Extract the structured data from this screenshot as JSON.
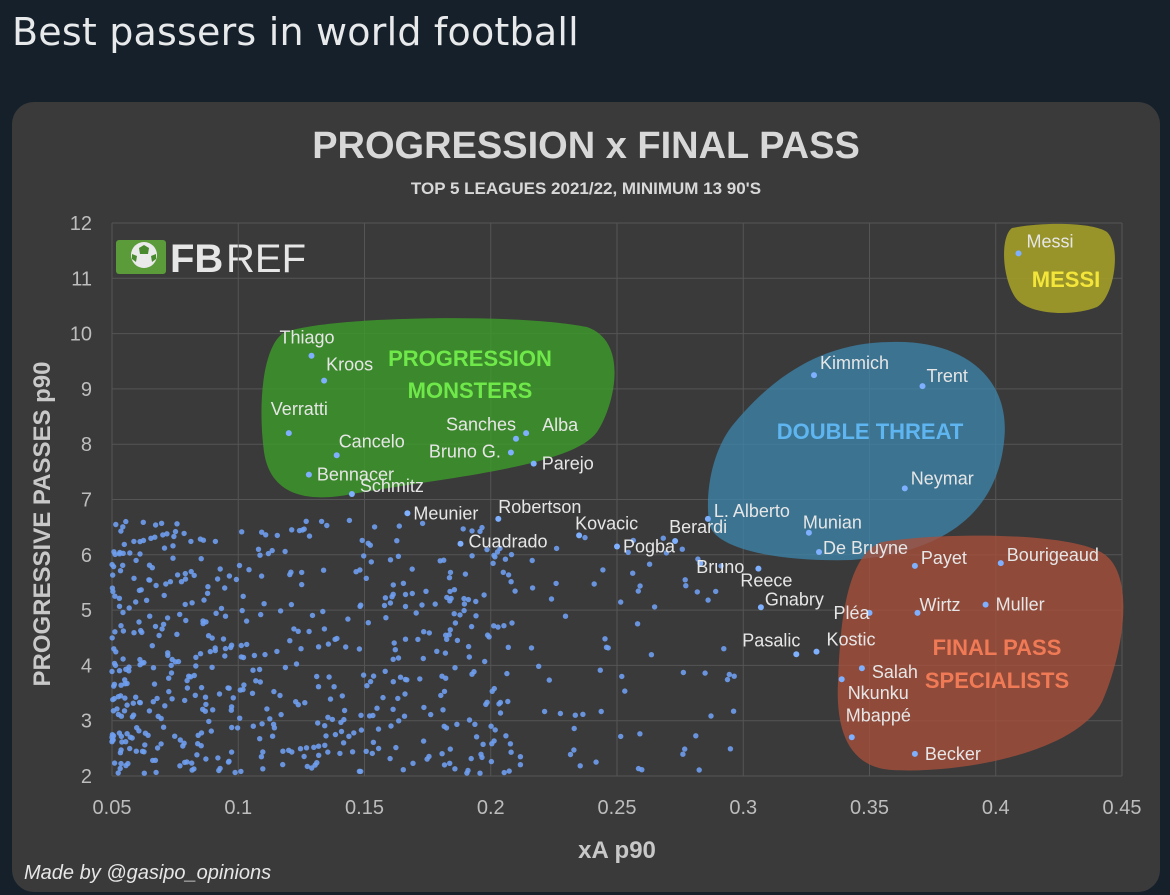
{
  "tweet": {
    "text": "Best passers in world football"
  },
  "logo": {
    "text_bold": "FB",
    "text_light": "REF"
  },
  "credit": "Made by @gasipo_opinions",
  "colors": {
    "point": "#5b8ee8",
    "progression": "#3d9a2a",
    "progression_text": "#6fe84a",
    "double": "#3b89b3",
    "double_text": "#5eb5f0",
    "final": "#a84f3b",
    "final_text": "#f07a55",
    "messi": "#a5a028",
    "messi_text": "#f3e53a"
  },
  "chart_data": {
    "type": "scatter",
    "title": "PROGRESSION x FINAL PASS",
    "subtitle": "TOP 5 LEAGUES 2021/22, MINIMUM 13 90'S",
    "xlabel": "xA p90",
    "ylabel": "PROGRESSIVE PASSES p90",
    "xlim": [
      0.05,
      0.45
    ],
    "ylim": [
      2,
      12
    ],
    "xticks": [
      "0.05",
      "0.1",
      "0.15",
      "0.2",
      "0.25",
      "0.3",
      "0.35",
      "0.4",
      "0.45"
    ],
    "yticks": [
      "2",
      "3",
      "4",
      "5",
      "6",
      "7",
      "8",
      "9",
      "10",
      "11",
      "12"
    ],
    "grid": true,
    "groups": [
      {
        "name": "PROGRESSION MONSTERS",
        "lines": [
          "PROGRESSION",
          "MONSTERS"
        ],
        "color": "progression"
      },
      {
        "name": "DOUBLE THREAT",
        "lines": [
          "DOUBLE THREAT"
        ],
        "color": "double"
      },
      {
        "name": "FINAL PASS SPECIALISTS",
        "lines": [
          "FINAL PASS",
          "SPECIALISTS"
        ],
        "color": "final"
      },
      {
        "name": "MESSI",
        "lines": [
          "MESSI"
        ],
        "color": "messi"
      }
    ],
    "labeled_points": [
      {
        "name": "Messi",
        "x": 0.409,
        "y": 11.45
      },
      {
        "name": "Thiago",
        "x": 0.129,
        "y": 9.6
      },
      {
        "name": "Kroos",
        "x": 0.134,
        "y": 9.15
      },
      {
        "name": "Verratti",
        "x": 0.12,
        "y": 8.2
      },
      {
        "name": "Cancelo",
        "x": 0.139,
        "y": 7.8
      },
      {
        "name": "Bennacer",
        "x": 0.128,
        "y": 7.45
      },
      {
        "name": "Schmitz",
        "x": 0.145,
        "y": 7.1
      },
      {
        "name": "Sanches",
        "x": 0.21,
        "y": 8.1
      },
      {
        "name": "Alba",
        "x": 0.214,
        "y": 8.2
      },
      {
        "name": "Bruno G.",
        "x": 0.208,
        "y": 7.85
      },
      {
        "name": "Parejo",
        "x": 0.217,
        "y": 7.65
      },
      {
        "name": "Meunier",
        "x": 0.167,
        "y": 6.75
      },
      {
        "name": "Robertson",
        "x": 0.203,
        "y": 6.65
      },
      {
        "name": "Cuadrado",
        "x": 0.188,
        "y": 6.2
      },
      {
        "name": "Kovacic",
        "x": 0.235,
        "y": 6.35
      },
      {
        "name": "Berardi",
        "x": 0.273,
        "y": 6.25
      },
      {
        "name": "Pogba",
        "x": 0.25,
        "y": 6.15
      },
      {
        "name": "Bruno",
        "x": 0.283,
        "y": 5.85
      },
      {
        "name": "L. Alberto",
        "x": 0.286,
        "y": 6.65
      },
      {
        "name": "Reece",
        "x": 0.306,
        "y": 5.75
      },
      {
        "name": "Gnabry",
        "x": 0.307,
        "y": 5.05
      },
      {
        "name": "Kimmich",
        "x": 0.328,
        "y": 9.25
      },
      {
        "name": "Trent",
        "x": 0.371,
        "y": 9.05
      },
      {
        "name": "Neymar",
        "x": 0.364,
        "y": 7.2
      },
      {
        "name": "Munian",
        "x": 0.326,
        "y": 6.4
      },
      {
        "name": "De Bruyne",
        "x": 0.33,
        "y": 6.05
      },
      {
        "name": "Payet",
        "x": 0.368,
        "y": 5.8
      },
      {
        "name": "Bourigeaud",
        "x": 0.402,
        "y": 5.85
      },
      {
        "name": "Pléa",
        "x": 0.35,
        "y": 4.95
      },
      {
        "name": "Wirtz",
        "x": 0.369,
        "y": 4.95
      },
      {
        "name": "Muller",
        "x": 0.396,
        "y": 5.1
      },
      {
        "name": "Pasalic",
        "x": 0.321,
        "y": 4.2
      },
      {
        "name": "Kostic",
        "x": 0.329,
        "y": 4.25
      },
      {
        "name": "Salah",
        "x": 0.347,
        "y": 3.95
      },
      {
        "name": "Nkunku",
        "x": 0.339,
        "y": 3.75
      },
      {
        "name": "Mbappé",
        "x": 0.343,
        "y": 2.7
      },
      {
        "name": "Becker",
        "x": 0.368,
        "y": 2.4
      }
    ],
    "other_points": {
      "count": 620,
      "x_range": [
        0.05,
        0.3
      ],
      "y_range": [
        2,
        7
      ],
      "note": "unlabelled players, dense cluster near low xA"
    }
  }
}
